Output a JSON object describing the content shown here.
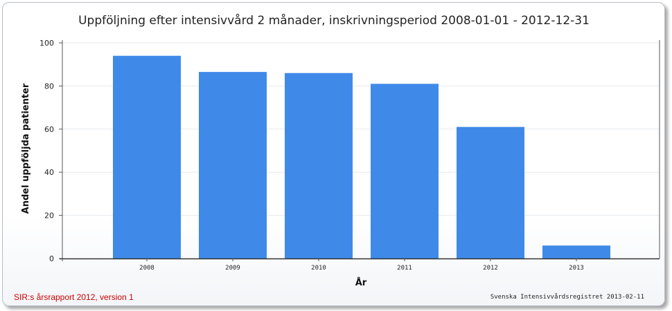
{
  "chart_data": {
    "type": "bar",
    "title": "Uppföljning efter intensivvård 2 månader, inskrivningsperiod 2008-01-01 - 2012-12-31",
    "xlabel": "År",
    "ylabel": "Andel uppföljda patienter",
    "categories": [
      "2008",
      "2009",
      "2010",
      "2011",
      "2012",
      "2013"
    ],
    "values": [
      94,
      86.5,
      86,
      81,
      61,
      6
    ],
    "ylim": [
      0,
      100
    ],
    "yticks": [
      0,
      20,
      40,
      60,
      80,
      100
    ],
    "grid": true,
    "legend": "none",
    "bar_color": "#3f8ae9"
  },
  "footer": {
    "left": "SIR:s årsrapport 2012, version 1",
    "right": "Svenska Intensivvårdsregistret 2013-02-11"
  }
}
